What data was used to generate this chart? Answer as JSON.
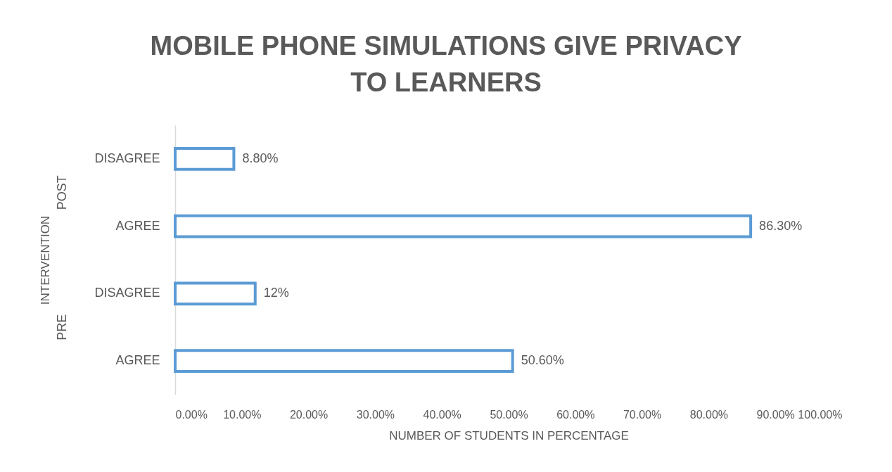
{
  "chart_data": {
    "type": "bar",
    "orientation": "horizontal",
    "title": "MOBILE PHONE SIMULATIONS GIVE PRIVACY TO LEARNERS",
    "xlabel": "NUMBER OF STUDENTS IN PERCENTAGE",
    "ylabel": "INTERVENTION",
    "annotations": [
      "POST",
      "PRE"
    ],
    "categories": [
      "DISAGREE",
      "AGREE",
      "DISAGREE",
      "AGREE"
    ],
    "values": [
      8.8,
      86.3,
      12,
      50.6
    ],
    "value_labels": [
      "8.80%",
      "86.30%",
      "12%",
      "50.60%"
    ],
    "color": "#5b9bd5",
    "xlim": [
      0,
      100
    ],
    "xticks": [
      {
        "value": 0,
        "label": "0.00%"
      },
      {
        "value": 10,
        "label": "10.00%"
      },
      {
        "value": 20,
        "label": "20.00%"
      },
      {
        "value": 30,
        "label": "30.00%"
      },
      {
        "value": 40,
        "label": "40.00%"
      },
      {
        "value": 50,
        "label": "50.00%"
      },
      {
        "value": 60,
        "label": "60.00%"
      },
      {
        "value": 70,
        "label": "70.00%"
      },
      {
        "value": 80,
        "label": "80.00%"
      },
      {
        "value": 90,
        "label": "90.00%"
      },
      {
        "value": 100,
        "label": "100.00%"
      }
    ],
    "grid": false
  }
}
